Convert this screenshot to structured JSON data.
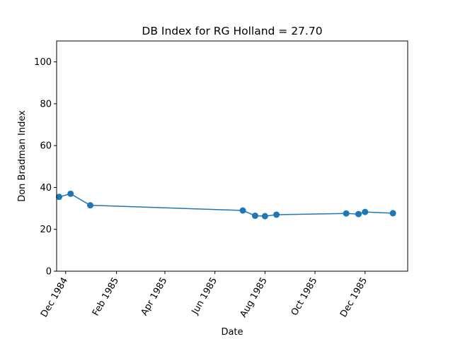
{
  "chart_data": {
    "type": "line",
    "title": "DB Index for RG Holland = 27.70",
    "xlabel": "Date",
    "ylabel": "Don Bradman Index",
    "ylim": [
      0,
      110
    ],
    "xlim": [
      "1984-11-20",
      "1986-01-22"
    ],
    "grid": false,
    "color": "#1f77b4",
    "x_ticks": [
      {
        "date": "1984-12-01",
        "label": "Dec 1984"
      },
      {
        "date": "1985-02-01",
        "label": "Feb 1985"
      },
      {
        "date": "1985-04-01",
        "label": "Apr 1985"
      },
      {
        "date": "1985-06-01",
        "label": "Jun 1985"
      },
      {
        "date": "1985-08-01",
        "label": "Aug 1985"
      },
      {
        "date": "1985-10-01",
        "label": "Oct 1985"
      },
      {
        "date": "1985-12-01",
        "label": "Dec 1985"
      }
    ],
    "y_ticks": [
      {
        "value": 0,
        "label": "0"
      },
      {
        "value": 20,
        "label": "20"
      },
      {
        "value": 40,
        "label": "40"
      },
      {
        "value": 60,
        "label": "60"
      },
      {
        "value": 80,
        "label": "80"
      },
      {
        "value": 100,
        "label": "100"
      }
    ],
    "series": [
      {
        "points": [
          {
            "x": "1984-11-23",
            "y": 35.5
          },
          {
            "x": "1984-12-07",
            "y": 37.0
          },
          {
            "x": "1984-12-31",
            "y": 31.5
          },
          {
            "x": "1985-07-05",
            "y": 29.0
          },
          {
            "x": "1985-07-20",
            "y": 26.5
          },
          {
            "x": "1985-08-01",
            "y": 26.3
          },
          {
            "x": "1985-08-15",
            "y": 27.0
          },
          {
            "x": "1985-11-08",
            "y": 27.6
          },
          {
            "x": "1985-11-23",
            "y": 27.3
          },
          {
            "x": "1985-12-01",
            "y": 28.3
          },
          {
            "x": "1986-01-04",
            "y": 27.7
          }
        ]
      }
    ]
  }
}
